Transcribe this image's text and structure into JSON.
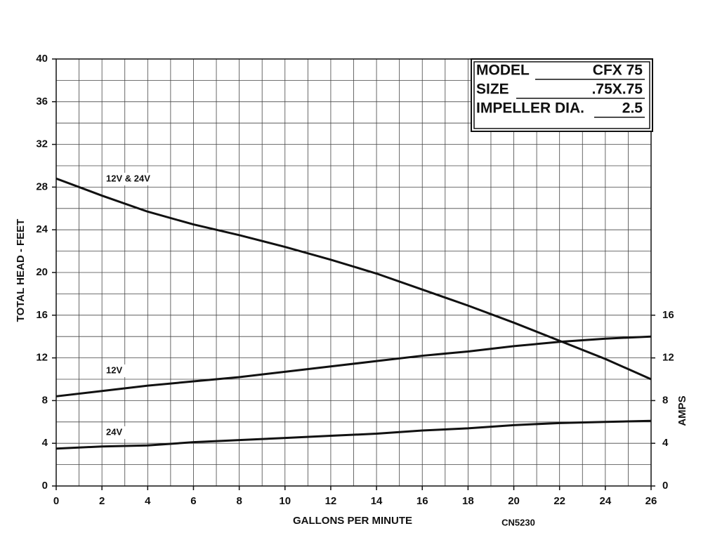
{
  "chart_data": {
    "type": "line",
    "x_label": "GALLONS PER MINUTE",
    "y_label": "TOTAL HEAD - FEET",
    "y2_label": "AMPS",
    "code": "CN5230",
    "info": [
      {
        "label": "MODEL",
        "value": "CFX 75"
      },
      {
        "label": "SIZE",
        "value": ".75X.75"
      },
      {
        "label": "IMPELLER DIA.",
        "value": "2.5"
      }
    ],
    "x": [
      0,
      2,
      4,
      6,
      8,
      10,
      12,
      14,
      16,
      18,
      20,
      22,
      24,
      26
    ],
    "xlim": [
      0,
      26
    ],
    "xticks": [
      0,
      2,
      4,
      6,
      8,
      10,
      12,
      14,
      16,
      18,
      20,
      22,
      24,
      26
    ],
    "ylim": [
      0,
      40
    ],
    "yticks": [
      0,
      4,
      8,
      12,
      16,
      20,
      24,
      28,
      32,
      36,
      40
    ],
    "y2lim": [
      0,
      40
    ],
    "y2ticks": [
      0,
      4,
      8,
      12,
      16
    ],
    "grid": true,
    "x_grid_step": 1,
    "y_grid_step": 2,
    "series": [
      {
        "name": "12V & 24V",
        "color": "#111111",
        "values": [
          28.8,
          27.2,
          25.7,
          24.5,
          23.5,
          22.4,
          21.2,
          19.9,
          18.4,
          16.9,
          15.3,
          13.6,
          11.9,
          10.0
        ]
      },
      {
        "name": "12V",
        "color": "#111111",
        "axis": "y2",
        "values": [
          8.4,
          8.9,
          9.4,
          9.8,
          10.2,
          10.7,
          11.2,
          11.7,
          12.2,
          12.6,
          13.1,
          13.5,
          13.8,
          14.0
        ]
      },
      {
        "name": "24V",
        "color": "#111111",
        "axis": "y2",
        "values": [
          3.5,
          3.7,
          3.8,
          4.1,
          4.3,
          4.5,
          4.7,
          4.9,
          5.2,
          5.4,
          5.7,
          5.9,
          6.0,
          6.1
        ]
      }
    ]
  }
}
